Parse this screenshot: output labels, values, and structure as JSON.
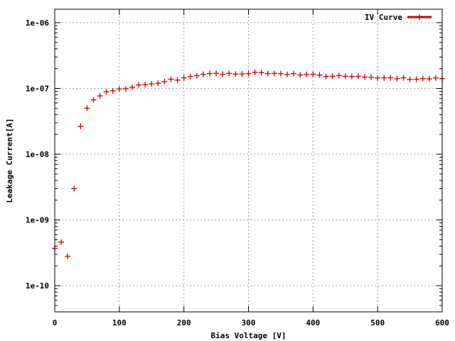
{
  "chart_data": {
    "type": "scatter",
    "title": "",
    "xlabel": "Bias Voltage [V]",
    "ylabel": "Leakage Current[A]",
    "xlim": [
      0,
      600
    ],
    "ylim": [
      4e-11,
      1.6e-06
    ],
    "yscale": "log",
    "grid": true,
    "legend_position": "top-right",
    "x_ticks": [
      {
        "value": 0,
        "label": "0"
      },
      {
        "value": 100,
        "label": "100"
      },
      {
        "value": 200,
        "label": "200"
      },
      {
        "value": 300,
        "label": "300"
      },
      {
        "value": 400,
        "label": "400"
      },
      {
        "value": 500,
        "label": "500"
      },
      {
        "value": 600,
        "label": "600"
      }
    ],
    "y_ticks": [
      {
        "value": 1e-10,
        "label": "1e-10"
      },
      {
        "value": 1e-09,
        "label": "1e-09"
      },
      {
        "value": 1e-08,
        "label": "1e-08"
      },
      {
        "value": 1e-07,
        "label": "1e-07"
      },
      {
        "value": 1e-06,
        "label": "1e-06"
      }
    ],
    "series": [
      {
        "name": "IV Curve",
        "color": "#cc0000",
        "marker": "plus",
        "points": [
          [
            0,
            3.7e-10
          ],
          [
            10,
            4.6e-10
          ],
          [
            20,
            2.8e-10
          ],
          [
            30,
            3e-09
          ],
          [
            40,
            2.65e-08
          ],
          [
            50,
            5e-08
          ],
          [
            60,
            6.7e-08
          ],
          [
            70,
            7.7e-08
          ],
          [
            80,
            8.9e-08
          ],
          [
            90,
            9.2e-08
          ],
          [
            100,
            9.8e-08
          ],
          [
            110,
            9.9e-08
          ],
          [
            120,
            1.04e-07
          ],
          [
            130,
            1.13e-07
          ],
          [
            140,
            1.14e-07
          ],
          [
            150,
            1.17e-07
          ],
          [
            160,
            1.2e-07
          ],
          [
            170,
            1.27e-07
          ],
          [
            180,
            1.38e-07
          ],
          [
            190,
            1.34e-07
          ],
          [
            200,
            1.45e-07
          ],
          [
            210,
            1.52e-07
          ],
          [
            220,
            1.56e-07
          ],
          [
            230,
            1.64e-07
          ],
          [
            240,
            1.68e-07
          ],
          [
            250,
            1.69e-07
          ],
          [
            260,
            1.64e-07
          ],
          [
            270,
            1.69e-07
          ],
          [
            280,
            1.65e-07
          ],
          [
            290,
            1.66e-07
          ],
          [
            300,
            1.68e-07
          ],
          [
            310,
            1.76e-07
          ],
          [
            320,
            1.74e-07
          ],
          [
            330,
            1.68e-07
          ],
          [
            340,
            1.69e-07
          ],
          [
            350,
            1.68e-07
          ],
          [
            360,
            1.63e-07
          ],
          [
            370,
            1.68e-07
          ],
          [
            380,
            1.6e-07
          ],
          [
            390,
            1.64e-07
          ],
          [
            400,
            1.64e-07
          ],
          [
            410,
            1.6e-07
          ],
          [
            420,
            1.52e-07
          ],
          [
            430,
            1.53e-07
          ],
          [
            440,
            1.57e-07
          ],
          [
            450,
            1.53e-07
          ],
          [
            460,
            1.52e-07
          ],
          [
            470,
            1.53e-07
          ],
          [
            480,
            1.49e-07
          ],
          [
            490,
            1.48e-07
          ],
          [
            500,
            1.44e-07
          ],
          [
            510,
            1.45e-07
          ],
          [
            520,
            1.45e-07
          ],
          [
            530,
            1.4e-07
          ],
          [
            540,
            1.45e-07
          ],
          [
            550,
            1.37e-07
          ],
          [
            560,
            1.38e-07
          ],
          [
            570,
            1.41e-07
          ],
          [
            580,
            1.4e-07
          ],
          [
            590,
            1.44e-07
          ],
          [
            600,
            1.41e-07
          ]
        ]
      }
    ]
  }
}
